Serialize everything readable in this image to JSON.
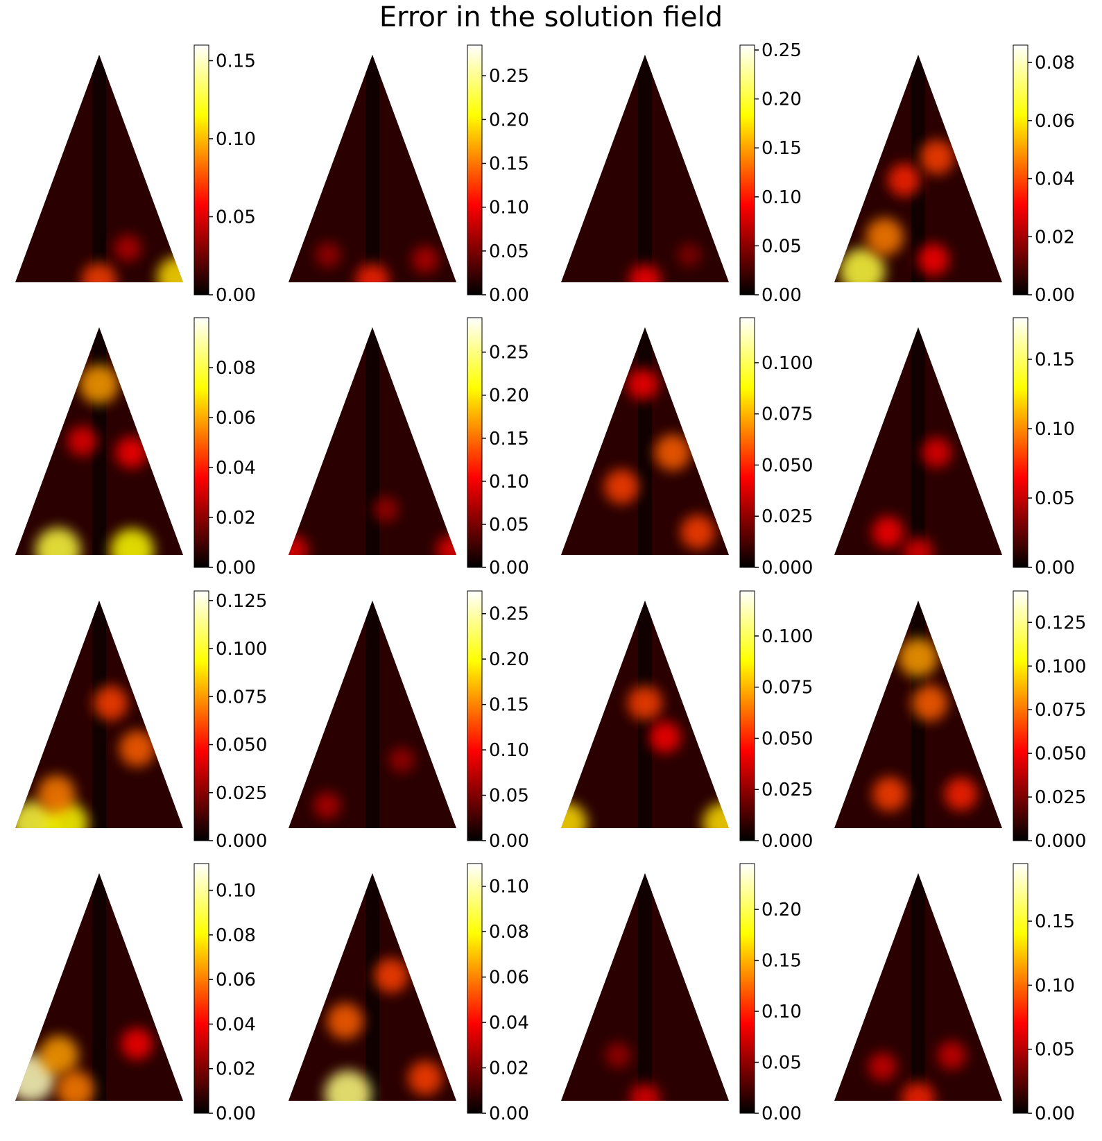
{
  "title": "Error in the solution field",
  "chart_data": [
    {
      "type": "heatmap",
      "row": 1,
      "col": 1,
      "colorbar": {
        "cmap": "hot",
        "min": 0.0,
        "max": 0.16,
        "ticks": [
          "0.00",
          "0.05",
          "0.10",
          "0.15"
        ]
      },
      "hotspots": [
        {
          "u": 0.98,
          "v": 0.02,
          "w": 0.75
        },
        {
          "u": 0.5,
          "v": 0.01,
          "w": 0.5
        },
        {
          "u": 0.7,
          "v": 0.15,
          "w": 0.25
        }
      ]
    },
    {
      "type": "heatmap",
      "row": 1,
      "col": 2,
      "colorbar": {
        "cmap": "hot",
        "min": 0.0,
        "max": 0.285,
        "ticks": [
          "0.00",
          "0.05",
          "0.10",
          "0.15",
          "0.20",
          "0.25"
        ]
      },
      "hotspots": [
        {
          "u": 0.5,
          "v": 0.01,
          "w": 0.45
        },
        {
          "u": 0.85,
          "v": 0.1,
          "w": 0.25
        },
        {
          "u": 0.2,
          "v": 0.12,
          "w": 0.2
        }
      ]
    },
    {
      "type": "heatmap",
      "row": 1,
      "col": 3,
      "colorbar": {
        "cmap": "hot",
        "min": 0.0,
        "max": 0.255,
        "ticks": [
          "0.00",
          "0.05",
          "0.10",
          "0.15",
          "0.20",
          "0.25"
        ]
      },
      "hotspots": [
        {
          "u": 0.5,
          "v": 0.01,
          "w": 0.4
        },
        {
          "u": 0.8,
          "v": 0.12,
          "w": 0.15
        }
      ]
    },
    {
      "type": "heatmap",
      "row": 1,
      "col": 4,
      "colorbar": {
        "cmap": "hot",
        "min": 0.0,
        "max": 0.086,
        "ticks": [
          "0.00",
          "0.02",
          "0.04",
          "0.06",
          "0.08"
        ]
      },
      "hotspots": [
        {
          "u": 0.15,
          "v": 0.05,
          "w": 0.85
        },
        {
          "u": 0.25,
          "v": 0.2,
          "w": 0.6
        },
        {
          "u": 0.35,
          "v": 0.45,
          "w": 0.45
        },
        {
          "u": 0.75,
          "v": 0.55,
          "w": 0.5
        },
        {
          "u": 0.6,
          "v": 0.1,
          "w": 0.4
        }
      ]
    },
    {
      "type": "heatmap",
      "row": 2,
      "col": 1,
      "colorbar": {
        "cmap": "hot",
        "min": 0.0,
        "max": 0.1,
        "ticks": [
          "0.00",
          "0.02",
          "0.04",
          "0.06",
          "0.08"
        ]
      },
      "hotspots": [
        {
          "u": 0.5,
          "v": 0.75,
          "w": 0.65
        },
        {
          "u": 0.25,
          "v": 0.02,
          "w": 0.85
        },
        {
          "u": 0.7,
          "v": 0.02,
          "w": 0.8
        },
        {
          "u": 0.85,
          "v": 0.45,
          "w": 0.4
        },
        {
          "u": 0.3,
          "v": 0.5,
          "w": 0.35
        }
      ]
    },
    {
      "type": "heatmap",
      "row": 2,
      "col": 2,
      "colorbar": {
        "cmap": "hot",
        "min": 0.0,
        "max": 0.29,
        "ticks": [
          "0.00",
          "0.05",
          "0.10",
          "0.15",
          "0.20",
          "0.25"
        ]
      },
      "hotspots": [
        {
          "u": 0.98,
          "v": 0.02,
          "w": 0.35
        },
        {
          "u": 0.02,
          "v": 0.02,
          "w": 0.35
        },
        {
          "u": 0.6,
          "v": 0.2,
          "w": 0.2
        }
      ]
    },
    {
      "type": "heatmap",
      "row": 2,
      "col": 3,
      "colorbar": {
        "cmap": "hot",
        "min": 0.0,
        "max": 0.122,
        "ticks": [
          "0.000",
          "0.025",
          "0.050",
          "0.075",
          "0.100"
        ]
      },
      "hotspots": [
        {
          "u": 0.8,
          "v": 0.45,
          "w": 0.55
        },
        {
          "u": 0.3,
          "v": 0.3,
          "w": 0.5
        },
        {
          "u": 0.85,
          "v": 0.1,
          "w": 0.5
        },
        {
          "u": 0.45,
          "v": 0.75,
          "w": 0.4
        }
      ]
    },
    {
      "type": "heatmap",
      "row": 2,
      "col": 4,
      "colorbar": {
        "cmap": "hot",
        "min": 0.0,
        "max": 0.18,
        "ticks": [
          "0.00",
          "0.05",
          "0.10",
          "0.15"
        ]
      },
      "hotspots": [
        {
          "u": 0.3,
          "v": 0.1,
          "w": 0.4
        },
        {
          "u": 0.7,
          "v": 0.45,
          "w": 0.35
        },
        {
          "u": 0.5,
          "v": 0.01,
          "w": 0.35
        }
      ]
    },
    {
      "type": "heatmap",
      "row": 3,
      "col": 1,
      "colorbar": {
        "cmap": "hot",
        "min": 0.0,
        "max": 0.13,
        "ticks": [
          "0.000",
          "0.025",
          "0.050",
          "0.075",
          "0.100",
          "0.125"
        ]
      },
      "hotspots": [
        {
          "u": 0.1,
          "v": 0.02,
          "w": 0.85
        },
        {
          "u": 0.3,
          "v": 0.02,
          "w": 0.8
        },
        {
          "u": 0.2,
          "v": 0.15,
          "w": 0.6
        },
        {
          "u": 0.65,
          "v": 0.55,
          "w": 0.5
        },
        {
          "u": 0.85,
          "v": 0.35,
          "w": 0.55
        }
      ]
    },
    {
      "type": "heatmap",
      "row": 3,
      "col": 2,
      "colorbar": {
        "cmap": "hot",
        "min": 0.0,
        "max": 0.275,
        "ticks": [
          "0.00",
          "0.05",
          "0.10",
          "0.15",
          "0.20",
          "0.25"
        ]
      },
      "hotspots": [
        {
          "u": 0.2,
          "v": 0.1,
          "w": 0.25
        },
        {
          "u": 0.75,
          "v": 0.3,
          "w": 0.2
        }
      ]
    },
    {
      "type": "heatmap",
      "row": 3,
      "col": 3,
      "colorbar": {
        "cmap": "hot",
        "min": 0.0,
        "max": 0.122,
        "ticks": [
          "0.000",
          "0.025",
          "0.050",
          "0.075",
          "0.100"
        ]
      },
      "hotspots": [
        {
          "u": 0.02,
          "v": 0.02,
          "w": 0.75
        },
        {
          "u": 0.98,
          "v": 0.02,
          "w": 0.75
        },
        {
          "u": 0.5,
          "v": 0.55,
          "w": 0.5
        },
        {
          "u": 0.7,
          "v": 0.4,
          "w": 0.4
        }
      ]
    },
    {
      "type": "heatmap",
      "row": 3,
      "col": 4,
      "colorbar": {
        "cmap": "hot",
        "min": 0.0,
        "max": 0.143,
        "ticks": [
          "0.000",
          "0.025",
          "0.050",
          "0.075",
          "0.100",
          "0.125"
        ]
      },
      "hotspots": [
        {
          "u": 0.5,
          "v": 0.75,
          "w": 0.65
        },
        {
          "u": 0.65,
          "v": 0.55,
          "w": 0.55
        },
        {
          "u": 0.3,
          "v": 0.15,
          "w": 0.5
        },
        {
          "u": 0.8,
          "v": 0.15,
          "w": 0.45
        }
      ]
    },
    {
      "type": "heatmap",
      "row": 4,
      "col": 1,
      "colorbar": {
        "cmap": "hot",
        "min": 0.0,
        "max": 0.112,
        "ticks": [
          "0.00",
          "0.02",
          "0.04",
          "0.06",
          "0.08",
          "0.10"
        ]
      },
      "hotspots": [
        {
          "u": 0.05,
          "v": 0.1,
          "w": 0.95
        },
        {
          "u": 0.2,
          "v": 0.2,
          "w": 0.65
        },
        {
          "u": 0.35,
          "v": 0.05,
          "w": 0.6
        },
        {
          "u": 0.8,
          "v": 0.25,
          "w": 0.4
        }
      ]
    },
    {
      "type": "heatmap",
      "row": 4,
      "col": 2,
      "colorbar": {
        "cmap": "hot",
        "min": 0.0,
        "max": 0.11,
        "ticks": [
          "0.00",
          "0.02",
          "0.04",
          "0.06",
          "0.08",
          "0.10"
        ]
      },
      "hotspots": [
        {
          "u": 0.35,
          "v": 0.03,
          "w": 0.9
        },
        {
          "u": 0.25,
          "v": 0.35,
          "w": 0.55
        },
        {
          "u": 0.75,
          "v": 0.55,
          "w": 0.5
        },
        {
          "u": 0.85,
          "v": 0.1,
          "w": 0.5
        }
      ]
    },
    {
      "type": "heatmap",
      "row": 4,
      "col": 3,
      "colorbar": {
        "cmap": "hot",
        "min": 0.0,
        "max": 0.245,
        "ticks": [
          "0.00",
          "0.05",
          "0.10",
          "0.15",
          "0.20"
        ]
      },
      "hotspots": [
        {
          "u": 0.5,
          "v": 0.01,
          "w": 0.35
        },
        {
          "u": 0.3,
          "v": 0.2,
          "w": 0.2
        }
      ]
    },
    {
      "type": "heatmap",
      "row": 4,
      "col": 4,
      "colorbar": {
        "cmap": "hot",
        "min": 0.0,
        "max": 0.195,
        "ticks": [
          "0.00",
          "0.05",
          "0.10",
          "0.15"
        ]
      },
      "hotspots": [
        {
          "u": 0.5,
          "v": 0.01,
          "w": 0.45
        },
        {
          "u": 0.25,
          "v": 0.15,
          "w": 0.3
        },
        {
          "u": 0.75,
          "v": 0.2,
          "w": 0.3
        }
      ]
    }
  ]
}
